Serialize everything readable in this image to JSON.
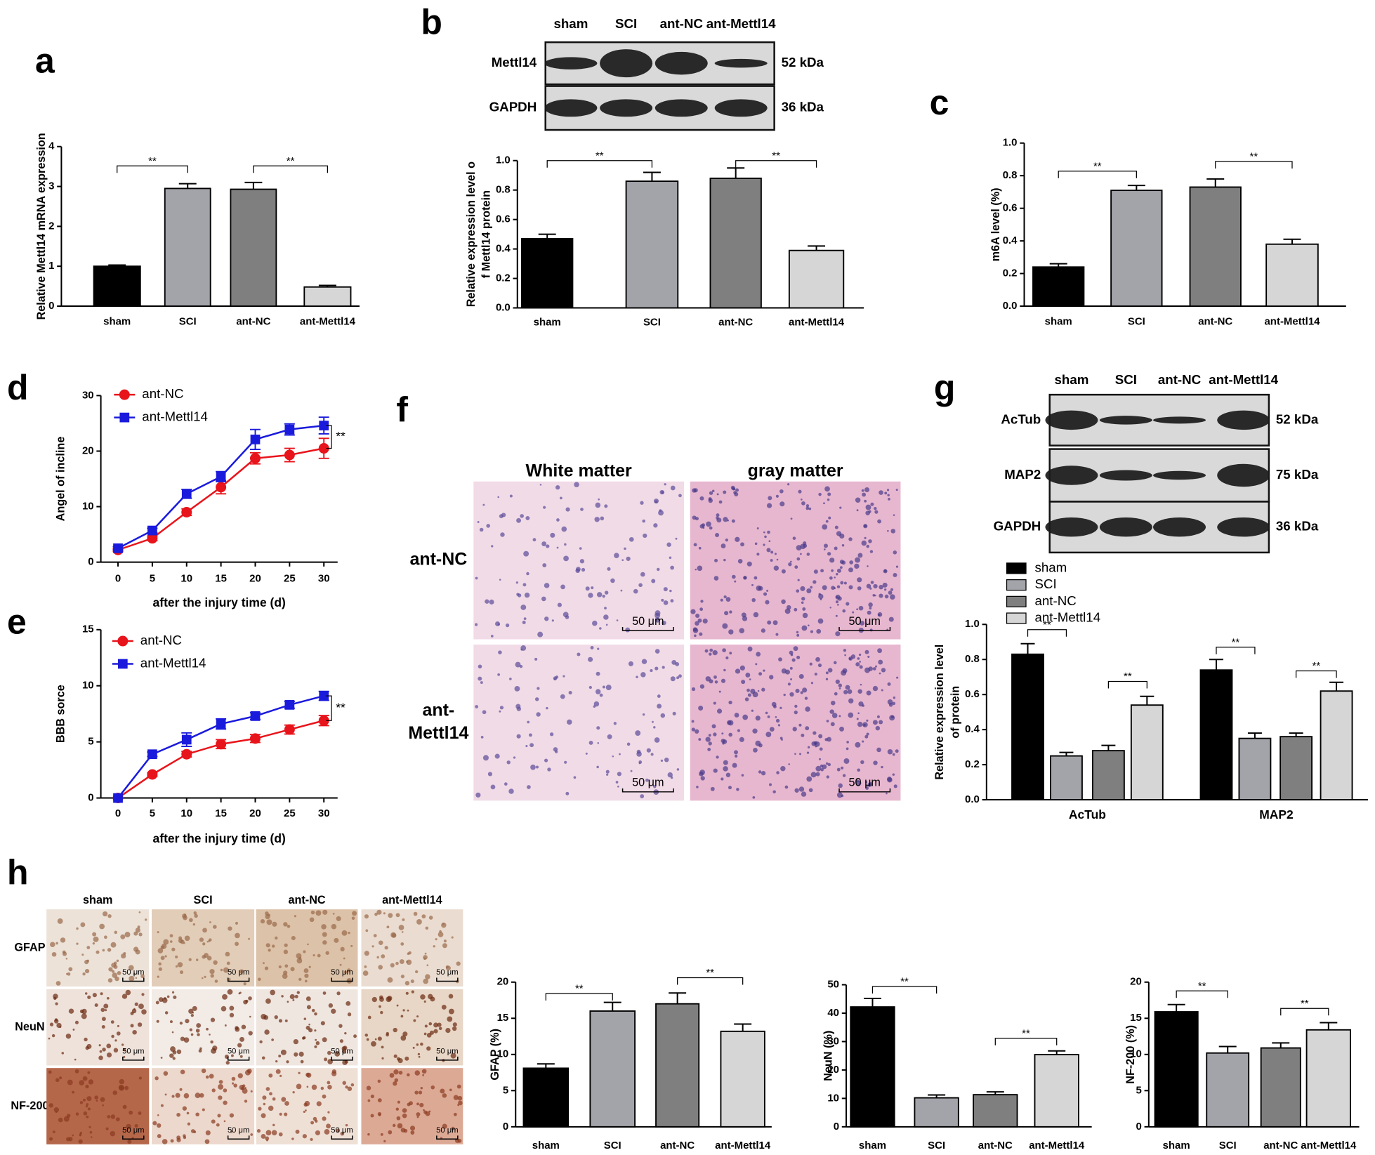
{
  "blot_b": {
    "panel": "b",
    "lanes": [
      "sham",
      "SCI",
      "ant-NC",
      "ant-Mettl14"
    ],
    "rows": [
      {
        "label": "Mettl14",
        "size": "52 kDa"
      },
      {
        "label": "GAPDH",
        "size": "36 kDa"
      }
    ]
  },
  "blot_g": {
    "panel": "g",
    "lanes": [
      "sham",
      "SCI",
      "ant-NC",
      "ant-Mettl14"
    ],
    "rows": [
      {
        "label": "AcTub",
        "size": "52 kDa"
      },
      {
        "label": "MAP2",
        "size": "75 kDa"
      },
      {
        "label": "GAPDH",
        "size": "36 kDa"
      }
    ]
  },
  "histology_f": {
    "panel": "f",
    "columns": [
      "White matter",
      "gray matter"
    ],
    "rows": [
      [
        "ant-NC"
      ],
      [
        "ant-",
        "Mettl14"
      ]
    ],
    "scale_bar": "50 μm"
  },
  "ihc_h": {
    "panel": "h",
    "columns": [
      "sham",
      "SCI",
      "ant-NC",
      "ant-Mettl14"
    ],
    "rows": [
      "GFAP",
      "NeuN",
      "NF-200"
    ],
    "scale_bar": "50 μm"
  },
  "chart_data": [
    {
      "type": "bar",
      "panel": "a",
      "y_label": [
        "Relative Mettl14 mRNA expression"
      ],
      "categories": [
        "sham",
        "SCI",
        "ant-NC",
        "ant-Mettl14"
      ],
      "values": [
        1.0,
        2.95,
        2.93,
        0.48
      ],
      "errors": [
        0.03,
        0.12,
        0.17,
        0.04
      ],
      "colors": [
        "#000000",
        "#a3a3aa",
        "#7f7f7f",
        "#d6d6d6"
      ],
      "ylim": [
        0,
        4
      ],
      "yticks": [
        0,
        1,
        2,
        3,
        4
      ],
      "annotations": [
        "**",
        "**"
      ]
    },
    {
      "type": "bar",
      "y_label": [
        "Relative expression level o",
        "f Mettl14 protein"
      ],
      "categories": [
        "sham",
        "SCI",
        "ant-NC",
        "ant-Mettl14"
      ],
      "values": [
        0.47,
        0.86,
        0.88,
        0.39
      ],
      "errors": [
        0.03,
        0.06,
        0.07,
        0.03
      ],
      "colors": [
        "#000000",
        "#a3a3aa",
        "#7f7f7f",
        "#d6d6d6"
      ],
      "ylim": [
        0,
        1.0
      ],
      "yticks": [
        {
          "value": 0,
          "label": "0.0"
        },
        0.2,
        0.4,
        0.6,
        0.8,
        {
          "value": 1,
          "label": "1.0"
        }
      ],
      "annotations": [
        "**",
        "**"
      ]
    },
    {
      "type": "bar",
      "panel": "c",
      "y_label": [
        "m6A level (%)"
      ],
      "categories": [
        "sham",
        "SCI",
        "ant-NC",
        "ant-Mettl14"
      ],
      "values": [
        0.24,
        0.71,
        0.73,
        0.38
      ],
      "errors": [
        0.02,
        0.03,
        0.05,
        0.03
      ],
      "colors": [
        "#000000",
        "#a3a3aa",
        "#7f7f7f",
        "#d6d6d6"
      ],
      "ylim": [
        0,
        1.0
      ],
      "yticks": [
        {
          "value": 0,
          "label": "0.0"
        },
        0.2,
        0.4,
        0.6,
        0.8,
        {
          "value": 1,
          "label": "1.0"
        }
      ],
      "annotations": [
        "**",
        "**"
      ]
    },
    {
      "type": "line",
      "panel": "d",
      "y_label": [
        "Angel of incline"
      ],
      "x_label": "after the injury time (d)",
      "x": [
        0,
        5,
        10,
        15,
        20,
        25,
        30
      ],
      "xlim": [
        -2.5,
        32
      ],
      "xticks": [
        0,
        5,
        10,
        15,
        20,
        25,
        30
      ],
      "ylim": [
        0,
        30
      ],
      "yticks": [
        0,
        10,
        20,
        30
      ],
      "legend": "upper left",
      "series": [
        {
          "name": "ant-NC",
          "color": "#e8141b",
          "marker": "circle",
          "values": [
            2.2,
            4.3,
            9.0,
            13.5,
            18.7,
            19.3,
            20.5
          ],
          "errors": [
            0.3,
            0.4,
            0.6,
            1.2,
            1.0,
            1.2,
            1.8
          ]
        },
        {
          "name": "ant-Mettl14",
          "color": "#1a1adc",
          "marker": "square",
          "values": [
            2.5,
            5.7,
            12.3,
            15.4,
            22.1,
            23.9,
            24.6
          ],
          "errors": [
            0.3,
            0.4,
            0.8,
            0.9,
            1.8,
            1.0,
            1.5
          ]
        }
      ],
      "annotations": [
        "**"
      ]
    },
    {
      "type": "line",
      "panel": "e",
      "y_label": [
        "BBB sorce"
      ],
      "x_label": "after the injury time (d)",
      "x": [
        0,
        5,
        10,
        15,
        20,
        25,
        30
      ],
      "xlim": [
        -2.5,
        32
      ],
      "xticks": [
        0,
        5,
        10,
        15,
        20,
        25,
        30
      ],
      "ylim": [
        0,
        15
      ],
      "yticks": [
        0,
        5,
        10,
        15
      ],
      "legend": "upper left",
      "series": [
        {
          "name": "ant-NC",
          "color": "#e8141b",
          "marker": "circle",
          "values": [
            0,
            2.1,
            3.9,
            4.8,
            5.3,
            6.1,
            6.9
          ],
          "errors": [
            0,
            0.15,
            0.25,
            0.4,
            0.35,
            0.4,
            0.45
          ]
        },
        {
          "name": "ant-Mettl14",
          "color": "#1a1adc",
          "marker": "square",
          "values": [
            0,
            3.9,
            5.2,
            6.6,
            7.3,
            8.3,
            9.1
          ],
          "errors": [
            0,
            0.2,
            0.6,
            0.45,
            0.3,
            0.3,
            0.4
          ]
        }
      ],
      "annotations": [
        "**"
      ]
    },
    {
      "type": "grouped_bar",
      "y_label": [
        "Relative expression level",
        "of protein"
      ],
      "categories": [
        "AcTub",
        "MAP2"
      ],
      "ylim": [
        0,
        1.0
      ],
      "yticks": [
        {
          "value": 0,
          "label": "0.0"
        },
        0.2,
        0.4,
        0.6,
        0.8,
        {
          "value": 1,
          "label": "1.0"
        }
      ],
      "series": [
        {
          "name": "sham",
          "color": "#000000",
          "values": [
            0.83,
            0.74
          ],
          "errors": [
            0.06,
            0.06
          ]
        },
        {
          "name": "SCI",
          "color": "#a3a3aa",
          "values": [
            0.25,
            0.35
          ],
          "errors": [
            0.02,
            0.03
          ]
        },
        {
          "name": "ant-NC",
          "color": "#7f7f7f",
          "values": [
            0.28,
            0.36
          ],
          "errors": [
            0.03,
            0.02
          ]
        },
        {
          "name": "ant-Mettl14",
          "color": "#d6d6d6",
          "values": [
            0.54,
            0.62
          ],
          "errors": [
            0.05,
            0.05
          ]
        }
      ],
      "annotations": [
        "**",
        "**",
        "**",
        "**"
      ]
    },
    {
      "type": "bar",
      "y_label": [
        "GFAP (%)"
      ],
      "categories": [
        "sham",
        "SCI",
        "ant-NC",
        "ant-Mettl14"
      ],
      "values": [
        8.1,
        16.0,
        17.0,
        13.2
      ],
      "errors": [
        0.6,
        1.2,
        1.5,
        1.0
      ],
      "colors": [
        "#000000",
        "#a3a3aa",
        "#7f7f7f",
        "#d6d6d6"
      ],
      "ylim": [
        0,
        20
      ],
      "yticks": [
        0,
        5,
        10,
        15,
        20
      ],
      "annotations": [
        "**",
        "**"
      ]
    },
    {
      "type": "bar",
      "y_label": [
        "NeuN (%)"
      ],
      "categories": [
        "sham",
        "SCI",
        "ant-NC",
        "ant-Mettl14"
      ],
      "values": [
        42.2,
        10.2,
        11.3,
        25.4
      ],
      "errors": [
        3.0,
        1.0,
        1.0,
        1.3
      ],
      "colors": [
        "#000000",
        "#a3a3aa",
        "#7f7f7f",
        "#d6d6d6"
      ],
      "ylim": [
        0,
        50
      ],
      "yticks": [
        0,
        10,
        20,
        30,
        40,
        50
      ],
      "annotations": [
        "**",
        "**"
      ]
    },
    {
      "type": "bar",
      "y_label": [
        "NF-200 (%)"
      ],
      "categories": [
        "sham",
        "SCI",
        "ant-NC",
        "ant-Mettl14"
      ],
      "values": [
        15.9,
        10.2,
        10.9,
        13.4
      ],
      "errors": [
        1.0,
        0.9,
        0.7,
        1.0
      ],
      "colors": [
        "#000000",
        "#a3a3aa",
        "#7f7f7f",
        "#d6d6d6"
      ],
      "ylim": [
        0,
        20
      ],
      "yticks": [
        0,
        5,
        10,
        15,
        20
      ],
      "annotations": [
        "**",
        "**"
      ]
    }
  ]
}
